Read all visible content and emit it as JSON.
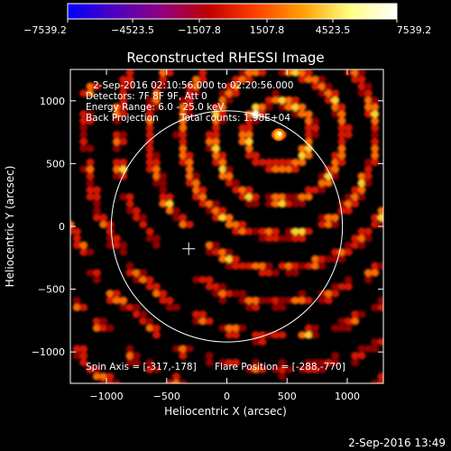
{
  "chart_data": {
    "type": "heatmap",
    "title": "Reconstructed RHESSI Image",
    "xlabel": "Heliocentric X (arcsec)",
    "ylabel": "Heliocentric Y (arcsec)",
    "xlim": [
      -1300,
      1300
    ],
    "ylim": [
      -1250,
      1250
    ],
    "xticks": [
      -1000,
      -500,
      0,
      500,
      1000
    ],
    "yticks": [
      1000,
      500,
      0,
      -500,
      -1000
    ],
    "xtick_labels": [
      "−1000",
      "−500",
      "0",
      "500",
      "1000"
    ],
    "ytick_labels": [
      "1000",
      "500",
      "0",
      "−500",
      "−1000"
    ],
    "colorbar": {
      "min": -7539.2,
      "max": 7539.2,
      "ticks": [
        "−7539.2",
        "−4523.5",
        "−1507.8",
        "1507.8",
        "4523.5",
        "7539.2"
      ],
      "colors": [
        "#0000ff",
        "#5000c0",
        "#900080",
        "#c00000",
        "#ff4000",
        "#ffa000",
        "#ffff80",
        "#ffffff"
      ]
    },
    "annotations": {
      "time_range": "2-Sep-2016 02:10:56.000 to 02:20:56.000",
      "detectors": "Detectors: 7F 8F 9F, Att 0",
      "energy": "Energy Range: 6.0 - 25.0 keV",
      "method": "Back Projection",
      "counts": "Total counts: 1.98E+04",
      "spin_axis": "Spin Axis = [-317,-178]",
      "flare_position": "Flare Position = [-288,-770]"
    },
    "solar_disk_radius": 960,
    "brightest_source": [
      430,
      730
    ],
    "secondary_source": [
      -1000,
      -1000
    ]
  },
  "footer": {
    "timestamp": "2-Sep-2016 13:49"
  }
}
